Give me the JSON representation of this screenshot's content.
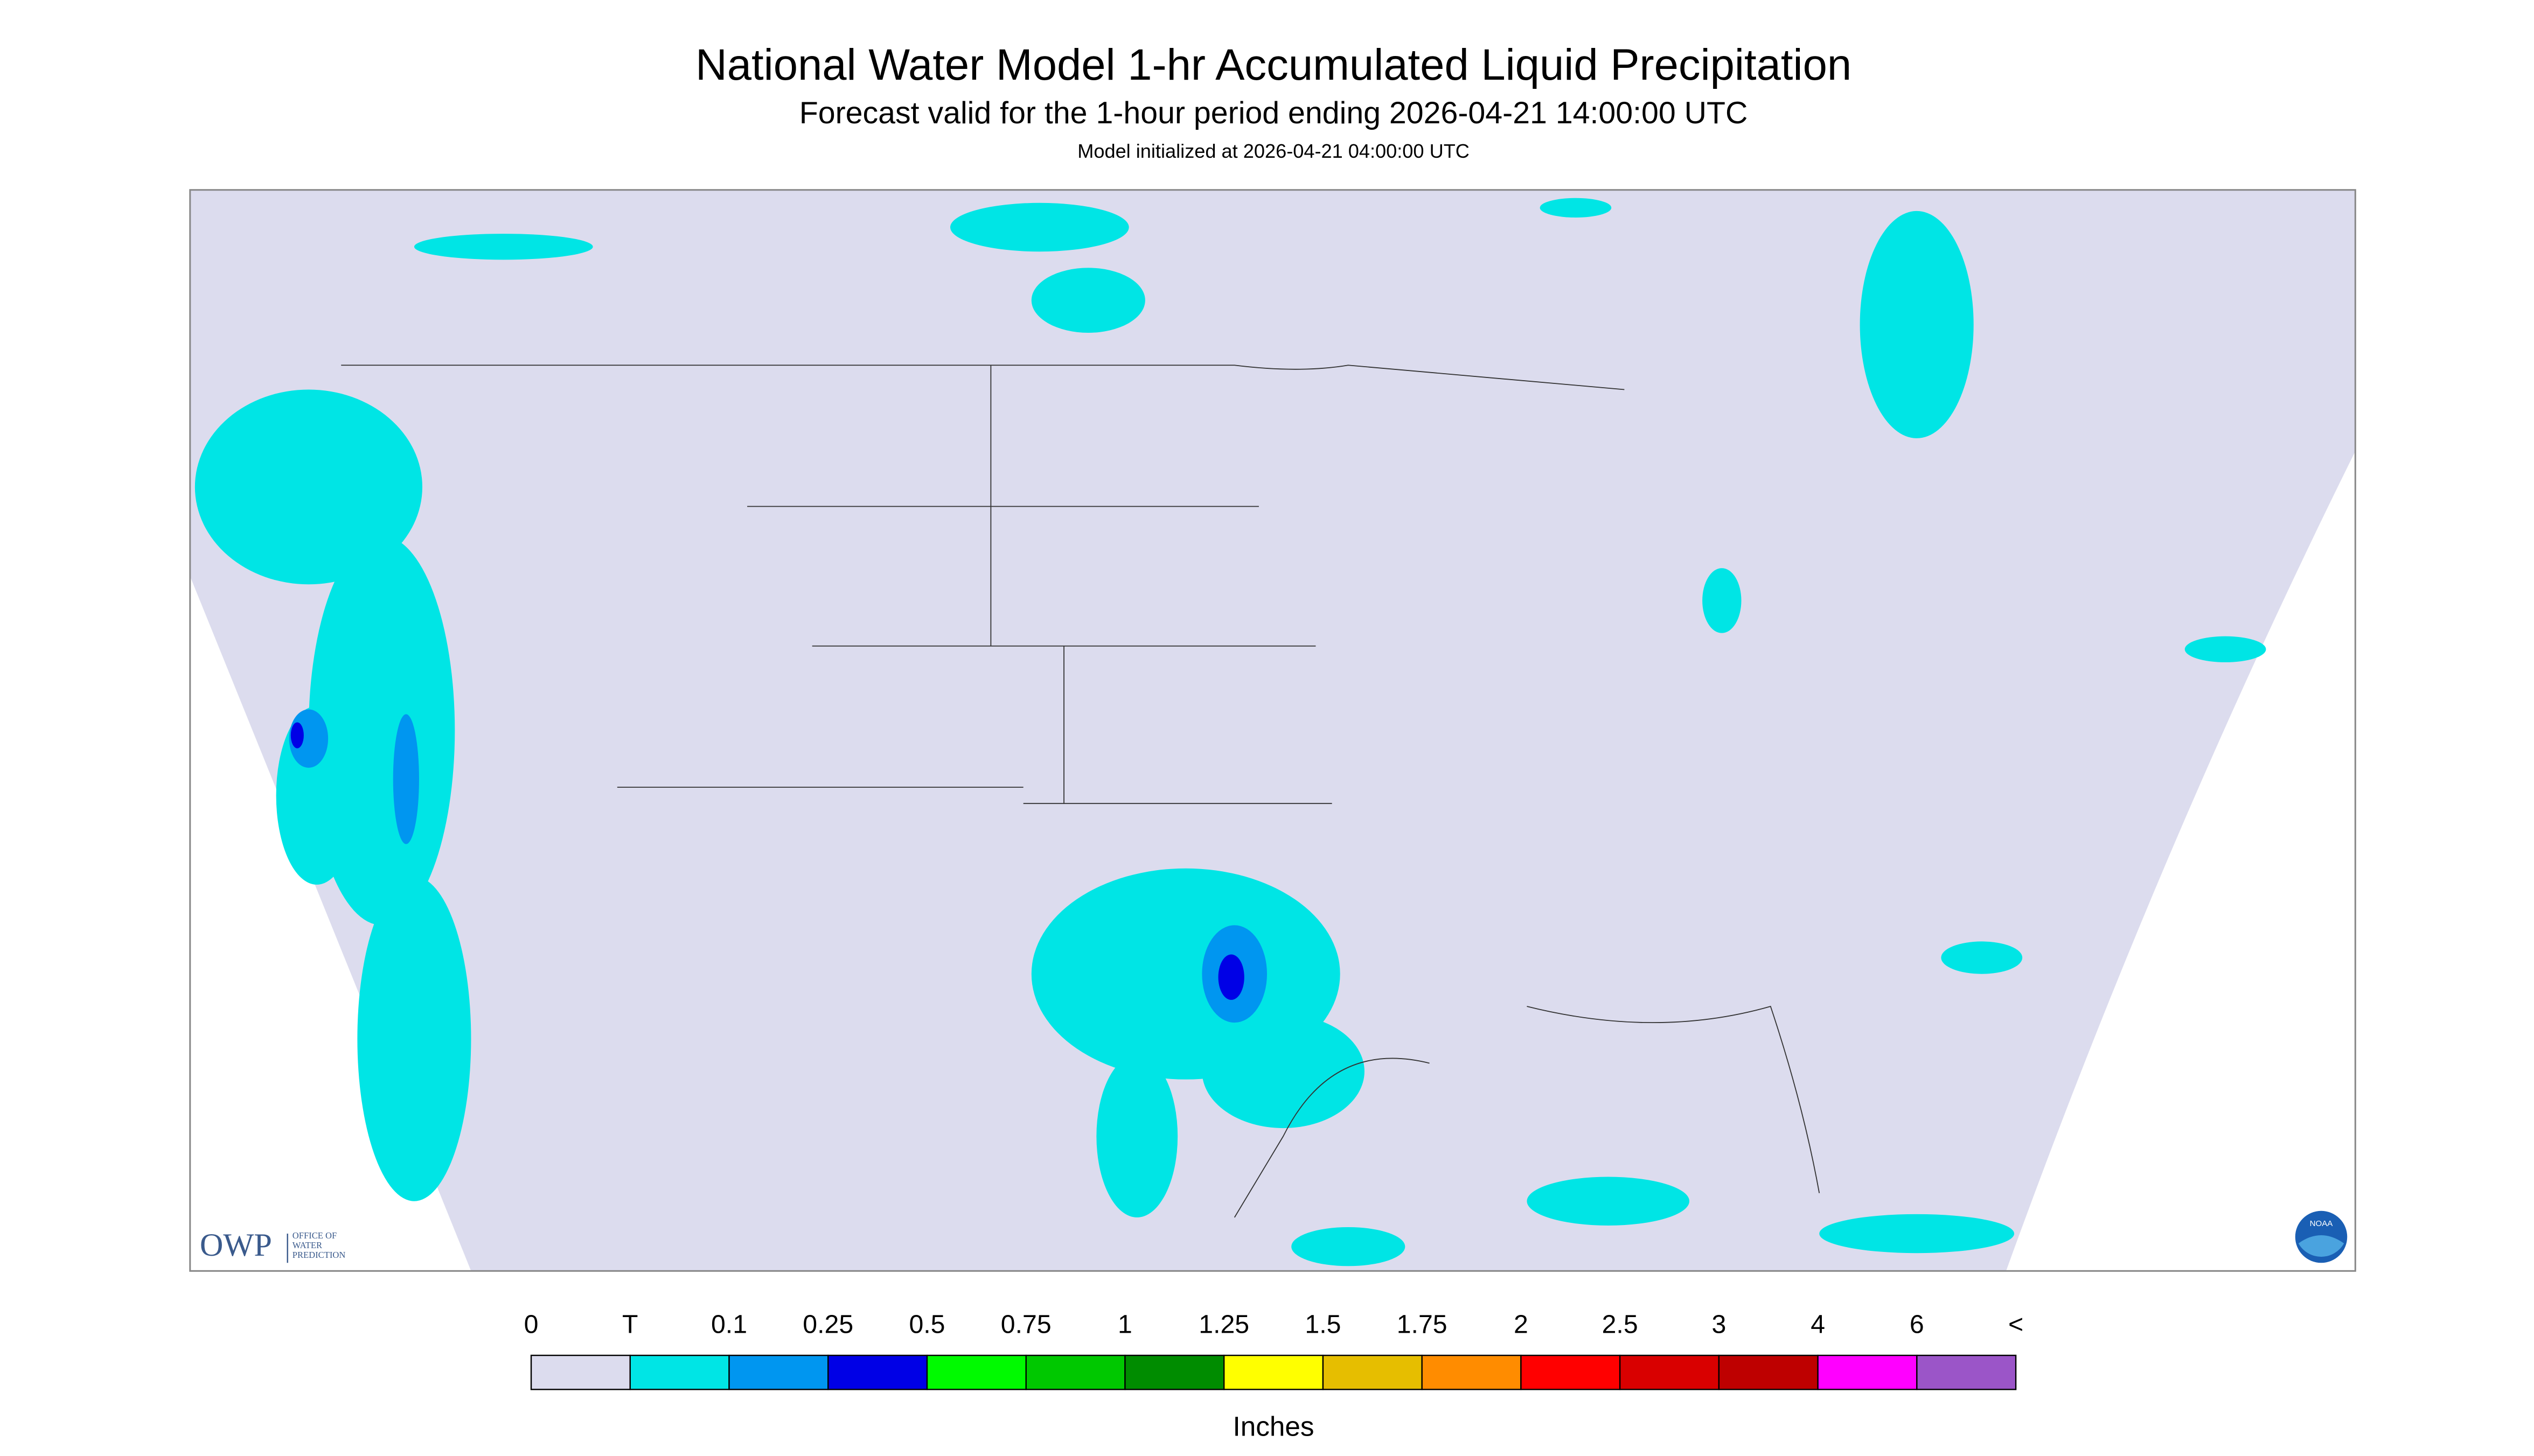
{
  "header": {
    "title": "National Water Model 1-hr Accumulated Liquid Precipitation",
    "subtitle": "Forecast valid for the 1-hour period ending 2026-04-21 14:00:00 UTC",
    "note": "Model initialized at 2026-04-21 04:00:00 UTC"
  },
  "logos": {
    "owp": "OWP",
    "owp_lines": [
      "OFFICE OF",
      "WATER",
      "PREDICTION"
    ],
    "noaa": "NOAA"
  },
  "legend": {
    "labels": [
      "0",
      "T",
      "0.1",
      "0.25",
      "0.5",
      "0.75",
      "1",
      "1.25",
      "1.5",
      "1.75",
      "2",
      "2.5",
      "3",
      "4",
      "6",
      "<"
    ],
    "colors": [
      "#dcdcee",
      "#00e5e5",
      "#0096f0",
      "#0000e6",
      "#00fa00",
      "#00c800",
      "#008c00",
      "#ffff00",
      "#e6be00",
      "#ff8c00",
      "#ff0000",
      "#d90000",
      "#be0000",
      "#ff00ff",
      "#9b55c8"
    ],
    "unit": "Inches"
  }
}
